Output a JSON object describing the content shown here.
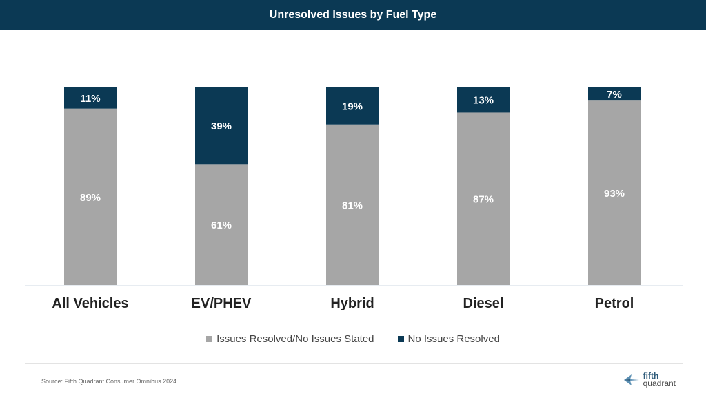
{
  "header": {
    "title": "Unresolved Issues by Fuel Type"
  },
  "colors": {
    "header_bg": "#0b3954",
    "resolved": "#a6a6a6",
    "unresolved": "#0b3954",
    "axis": "#cfd8e3"
  },
  "chart_data": {
    "type": "bar",
    "stacked": true,
    "title": "Unresolved Issues by Fuel Type",
    "categories": [
      "All Vehicles",
      "EV/PHEV",
      "Hybrid",
      "Diesel",
      "Petrol"
    ],
    "series": [
      {
        "name": "Issues Resolved/No Issues Stated",
        "values": [
          89,
          61,
          81,
          87,
          93
        ],
        "labels": [
          "89%",
          "61%",
          "81%",
          "87%",
          "93%"
        ],
        "color": "#a6a6a6"
      },
      {
        "name": "No Issues Resolved",
        "values": [
          11,
          39,
          19,
          13,
          7
        ],
        "labels": [
          "11%",
          "39%",
          "19%",
          "13%",
          "7%"
        ],
        "color": "#0b3954"
      }
    ],
    "ylim": [
      0,
      100
    ],
    "unit": "%",
    "grid": false,
    "legend": "bottom-center"
  },
  "legend": {
    "items": [
      {
        "label": "Issues Resolved/No Issues Stated",
        "color": "#a6a6a6"
      },
      {
        "label": "No Issues Resolved",
        "color": "#0b3954"
      }
    ]
  },
  "footer": {
    "source": "Source: Fifth Quadrant Consumer Omnibus 2024",
    "logo_line1": "fifth",
    "logo_line2": "quadrant",
    "logo_icon": "fifth-quadrant-arrow-icon"
  }
}
